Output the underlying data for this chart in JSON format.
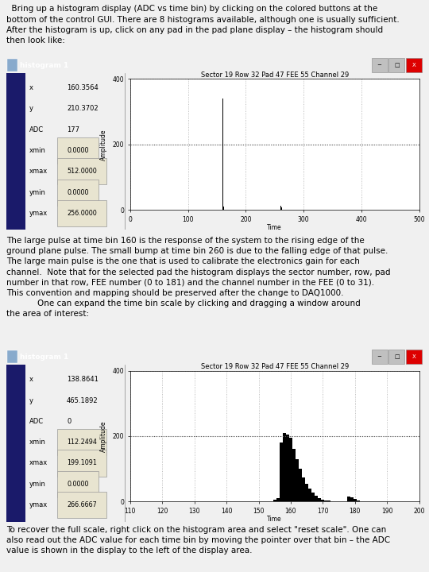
{
  "bg_color": "#f0f0f0",
  "text_color": "#000000",
  "para1": "  Bring up a histogram display (ADC vs time bin) by clicking on the colored buttons at the\nbottom of the control GUI. There are 8 histograms available, although one is usually sufficient.\nAfter the histogram is up, click on any pad in the pad plane display – the histogram should\nthen look like:",
  "para2": "The large pulse at time bin 160 is the response of the system to the rising edge of the\nground plane pulse. The small bump at time bin 260 is due to the falling edge of that pulse.\nThe large main pulse is the one that is used to calibrate the electronics gain for each\nchannel.  Note that for the selected pad the histogram displays the sector number, row, pad\nnumber in that row, FEE number (0 to 181) and the channel number in the FEE (0 to 31).\nThis convention and mapping should be preserved after the change to DAQ1000.",
  "para3": "            One can expand the time bin scale by clicking and dragging a window around\nthe area of interest:",
  "para4": "To recover the full scale, right click on the histogram area and select \"reset scale\". One can\nalso read out the ADC value for each time bin by moving the pointer over that bin – the ADC\nvalue is shown in the display to the left of the display area.",
  "win_title": "histogram 1",
  "win_title_bg": "#0000cc",
  "win_title_fg": "#ffffff",
  "win_inner_bg": "#d4cfc4",
  "win_border_color": "#0000aa",
  "plot_bg": "#ffffff",
  "plot_title": "Sector 19 Row 32 Pad 47 FEE 55 Channel 29",
  "plot_xlabel": "Time",
  "plot_ylabel": "Amplitude",
  "fields1": [
    [
      "x",
      "160.3564",
      false
    ],
    [
      "y",
      "210.3702",
      false
    ],
    [
      "ADC",
      "177",
      false
    ],
    [
      "xmin",
      "0.0000",
      true
    ],
    [
      "xmax",
      "512.0000",
      true
    ],
    [
      "ymin",
      "0.0000",
      true
    ],
    [
      "ymax",
      "256.0000",
      true
    ]
  ],
  "fields2": [
    [
      "x",
      "138.8641",
      false
    ],
    [
      "y",
      "465.1892",
      false
    ],
    [
      "ADC",
      "0",
      false
    ],
    [
      "xmin",
      "112.2494",
      true
    ],
    [
      "xmax",
      "199.1091",
      true
    ],
    [
      "ymin",
      "0.0000",
      true
    ],
    [
      "ymax",
      "266.6667",
      true
    ]
  ],
  "font_size_text": 7.5,
  "font_size_win": 7.0
}
